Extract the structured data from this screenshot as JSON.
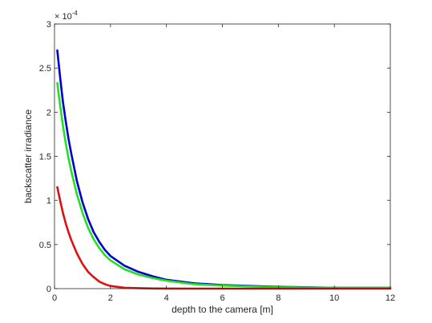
{
  "chart_data": {
    "type": "line",
    "title": "",
    "xlabel": "depth to the camera [m]",
    "ylabel": "backscatter irradiance",
    "xlim": [
      0,
      12
    ],
    "ylim": [
      0,
      3
    ],
    "x_ticks": [
      "0",
      "2",
      "4",
      "6",
      "8",
      "10",
      "12"
    ],
    "y_ticks": [
      "0",
      "0.5",
      "1",
      "1.5",
      "2",
      "2.5",
      "3"
    ],
    "y_exponent_base": "× 10",
    "y_exponent": "-4",
    "grid": false,
    "x": [
      0.1,
      0.2,
      0.3,
      0.4,
      0.5,
      0.6,
      0.8,
      1.0,
      1.2,
      1.4,
      1.6,
      1.8,
      2.0,
      2.5,
      3.0,
      3.5,
      4.0,
      5.0,
      6.0,
      7.0,
      8.0,
      10.0,
      12.0
    ],
    "series": [
      {
        "color": "#0000cc",
        "values": [
          2.7,
          2.4,
          2.12,
          1.9,
          1.7,
          1.53,
          1.22,
          0.98,
          0.79,
          0.64,
          0.53,
          0.44,
          0.37,
          0.26,
          0.19,
          0.14,
          0.1,
          0.06,
          0.04,
          0.03,
          0.02,
          0.01,
          0.01
        ]
      },
      {
        "color": "#22e022",
        "values": [
          2.33,
          2.08,
          1.85,
          1.65,
          1.48,
          1.33,
          1.07,
          0.86,
          0.69,
          0.56,
          0.46,
          0.38,
          0.32,
          0.22,
          0.16,
          0.12,
          0.09,
          0.05,
          0.035,
          0.025,
          0.015,
          0.01,
          0.01
        ]
      },
      {
        "color": "#dd1111",
        "values": [
          1.15,
          1.0,
          0.86,
          0.74,
          0.64,
          0.55,
          0.4,
          0.28,
          0.19,
          0.13,
          0.08,
          0.05,
          0.03,
          0.01,
          0.005,
          0.002,
          0.001,
          0.0,
          0.0,
          0.0,
          0.0,
          0.0,
          0.0
        ]
      }
    ]
  }
}
